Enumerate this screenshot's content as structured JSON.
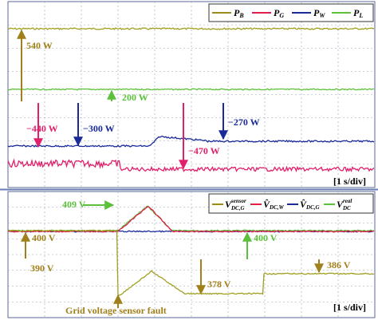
{
  "top_panel": {
    "legend": [
      {
        "symbol": "P",
        "sub": "B"
      },
      {
        "symbol": "P",
        "sub": "G"
      },
      {
        "symbol": "P",
        "sub": "W"
      },
      {
        "symbol": "P",
        "sub": "L"
      }
    ],
    "annotations": [
      "540 W",
      "200 W",
      "−440 W",
      "−300 W",
      "−270 W",
      "−470 W"
    ],
    "timebase": "[1 s/div]"
  },
  "bottom_panel": {
    "legend": [
      {
        "symbol": "V",
        "sup": "sensor",
        "sub": "DC,G"
      },
      {
        "symbol": "V̂",
        "sub": "DC,W"
      },
      {
        "symbol": "V̂",
        "sub": "DC,G"
      },
      {
        "symbol": "V",
        "sup": "real",
        "sub": "DC"
      }
    ],
    "annotations": [
      "409 V",
      "400 V",
      "390 V",
      "400 V",
      "378 V",
      "386 V"
    ],
    "fault_label": "Grid voltage sensor fault",
    "timebase": "[1 s/div]"
  }
}
